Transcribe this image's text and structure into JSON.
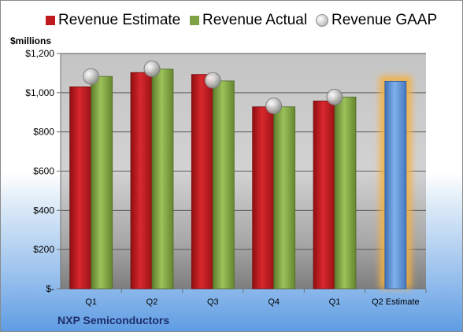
{
  "chart_data": {
    "type": "bar",
    "unit_label": "$millions",
    "categories": [
      "Q1",
      "Q2",
      "Q3",
      "Q4",
      "Q1",
      "Q2 Estimate"
    ],
    "series": [
      {
        "name": "Revenue Estimate",
        "color": "#c0191e",
        "values": [
          1030,
          1103,
          1093,
          928,
          958,
          null
        ]
      },
      {
        "name": "Revenue Actual",
        "color": "#7fa244",
        "values": [
          1083,
          1120,
          1060,
          928,
          978,
          null
        ]
      },
      {
        "name": "Revenue GAAP",
        "color": "#c0c0c0",
        "marker": "circle",
        "values": [
          1083,
          1122,
          1063,
          933,
          978,
          null
        ]
      },
      {
        "name": "Q2 Estimate",
        "color": "#5b8fd4",
        "highlight": "#f5b041",
        "values": [
          null,
          null,
          null,
          null,
          null,
          1058
        ]
      }
    ],
    "y_tick_labels": [
      "$-",
      "$200",
      "$400",
      "$600",
      "$800",
      "$1,000",
      "$1,200"
    ],
    "ylim": [
      0,
      1200
    ],
    "grid": true,
    "legend_position": "top"
  },
  "company": "NXP Semiconductors"
}
